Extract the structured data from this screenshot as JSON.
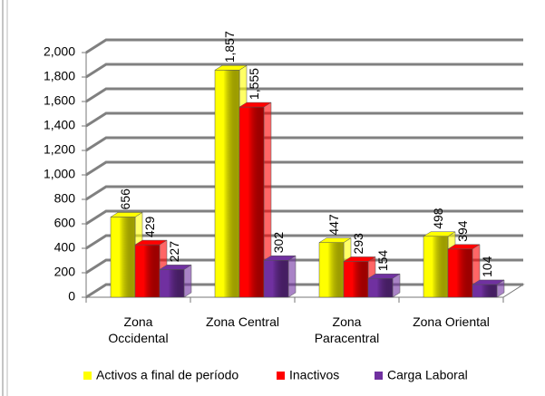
{
  "chart_data": {
    "type": "bar",
    "categories": [
      "Zona Occidental",
      "Zona Central",
      "Zona Paracentral",
      "Zona Oriental"
    ],
    "series": [
      {
        "name": "Activos a final de período",
        "color": "#ffff00",
        "values": [
          656,
          1857,
          447,
          498
        ],
        "value_labels": [
          "656",
          "1,857",
          "447",
          "498"
        ]
      },
      {
        "name": "Inactivos",
        "color": "#ff0000",
        "values": [
          429,
          1555,
          293,
          394
        ],
        "value_labels": [
          "429",
          "1,555",
          "293",
          "394"
        ]
      },
      {
        "name": "Carga Laboral",
        "color": "#7030a0",
        "values": [
          227,
          302,
          154,
          104
        ],
        "value_labels": [
          "227",
          "302",
          "154",
          "104"
        ]
      }
    ],
    "ylim": [
      0,
      2000
    ],
    "yticks": [
      0,
      200,
      400,
      600,
      800,
      {
        "value": 1000,
        "label": "1,000"
      },
      {
        "value": 1200,
        "label": "1,200"
      },
      {
        "value": 1400,
        "label": "1,400"
      },
      {
        "value": 1600,
        "label": "1,600"
      },
      {
        "value": 1800,
        "label": "1,800"
      },
      {
        "value": 2000,
        "label": "2,000"
      }
    ],
    "grid": true,
    "legend": "bottom"
  }
}
